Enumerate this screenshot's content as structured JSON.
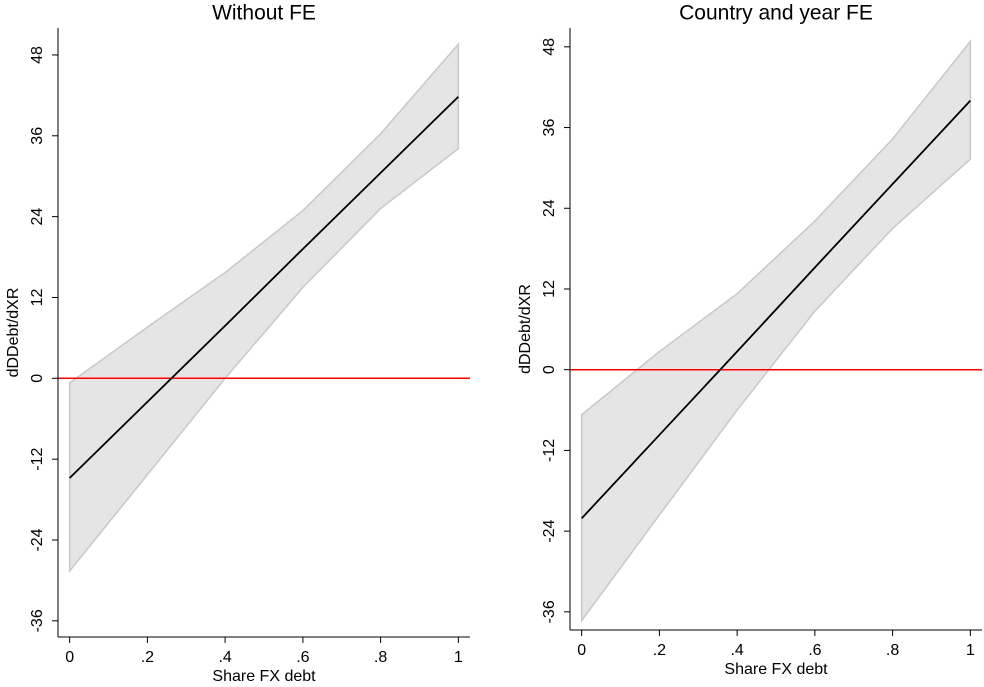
{
  "chart_data": [
    {
      "type": "line",
      "title": "Without FE",
      "xlabel": "Share FX debt",
      "ylabel": "dDDebt/dXR",
      "x": [
        0,
        0.2,
        0.4,
        0.6,
        0.8,
        1
      ],
      "values": [
        -14.8,
        -3.5,
        7.8,
        19.2,
        30.5,
        41.8
      ],
      "ci_upper": [
        -0.7,
        7.6,
        15.7,
        24.9,
        36.3,
        49.6
      ],
      "ci_lower": [
        -28.6,
        -14.3,
        0,
        13.5,
        25.2,
        34.1
      ],
      "color": "#000000",
      "band_color": "#e5e5e5",
      "band_edge_color": "#c8c8c8",
      "refline": 0,
      "refline_color": "#ff0000",
      "xlim": [
        -0.03,
        1.03
      ],
      "ylim": [
        -38.4,
        52
      ],
      "xticks": [
        0,
        {
          "value": 0.2,
          "label": ".2"
        },
        {
          "value": 0.4,
          "label": ".4"
        },
        {
          "value": 0.6,
          "label": ".6"
        },
        {
          "value": 0.8,
          "label": ".8"
        },
        1
      ],
      "yticks": [
        -36,
        -24,
        -12,
        0,
        12,
        24,
        36,
        48
      ]
    },
    {
      "type": "line",
      "title": "Country and year FE",
      "xlabel": "Share FX debt",
      "ylabel": "dDDebt/dXR",
      "x": [
        0,
        0.2,
        0.4,
        0.6,
        0.8,
        1
      ],
      "values": [
        -22.1,
        -9.7,
        2.7,
        15.2,
        27.6,
        40
      ],
      "ci_upper": [
        -6.7,
        2.7,
        11.3,
        22.1,
        34.3,
        48.8
      ],
      "ci_lower": [
        -37.3,
        -21.6,
        -6,
        8.7,
        21,
        31.3
      ],
      "color": "#000000",
      "band_color": "#e5e5e5",
      "band_edge_color": "#c8c8c8",
      "refline": 0,
      "refline_color": "#ff0000",
      "xlim": [
        -0.03,
        1.03
      ],
      "ylim": [
        -38.7,
        50.8
      ],
      "xticks": [
        0,
        {
          "value": 0.2,
          "label": ".2"
        },
        {
          "value": 0.4,
          "label": ".4"
        },
        {
          "value": 0.6,
          "label": ".6"
        },
        {
          "value": 0.8,
          "label": ".8"
        },
        1
      ],
      "yticks": [
        -36,
        -24,
        -12,
        0,
        12,
        24,
        36,
        48
      ]
    }
  ]
}
